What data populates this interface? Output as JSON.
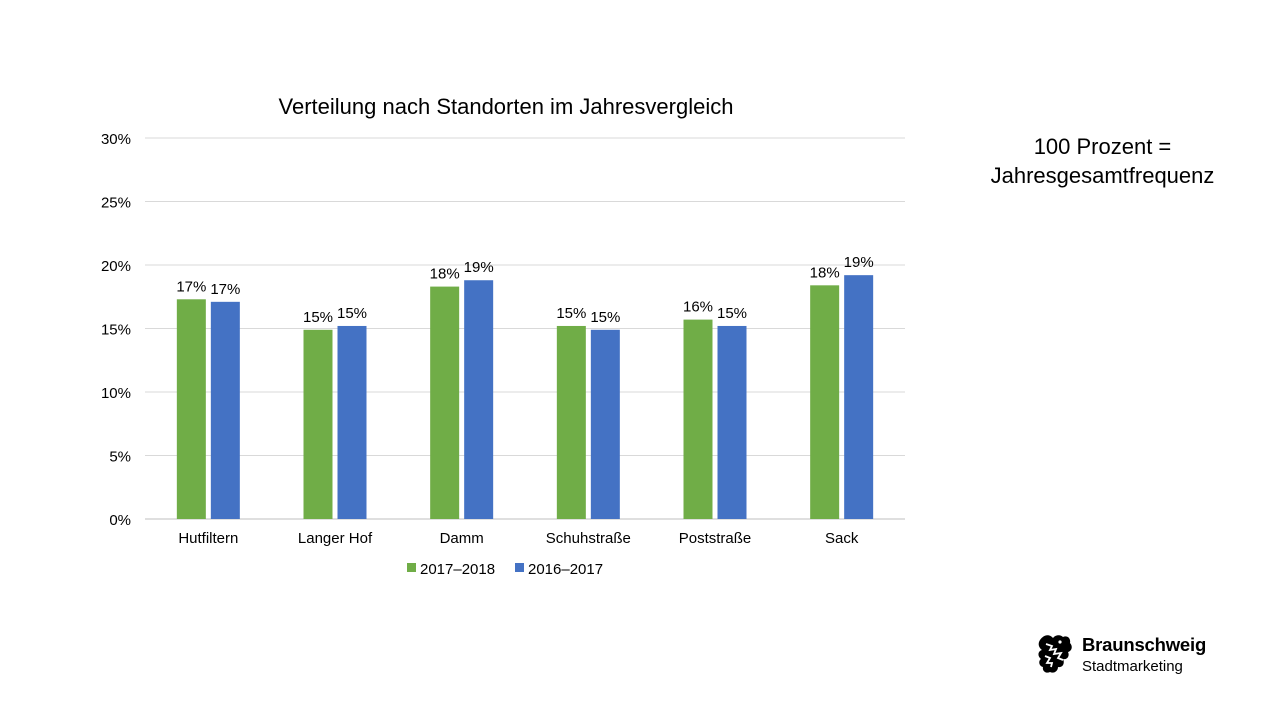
{
  "chart_data": {
    "type": "bar",
    "title": "Verteilung nach Standorten im Jahresvergleich",
    "xlabel": "",
    "ylabel": "",
    "categories": [
      "Hutfiltern",
      "Langer Hof",
      "Damm",
      "Schuhstraße",
      "Poststraße",
      "Sack"
    ],
    "series": [
      {
        "name": "2017–2018",
        "color": "#70ad47",
        "values": [
          17.3,
          14.9,
          18.3,
          15.2,
          15.7,
          18.4
        ],
        "labels": [
          "17%",
          "15%",
          "18%",
          "15%",
          "16%",
          "18%"
        ]
      },
      {
        "name": "2016–2017",
        "color": "#4472c4",
        "values": [
          17.1,
          15.2,
          18.8,
          14.9,
          15.2,
          19.2
        ],
        "labels": [
          "17%",
          "15%",
          "19%",
          "15%",
          "15%",
          "19%"
        ]
      }
    ],
    "ylim": [
      0,
      30
    ],
    "yticks": [
      0,
      5,
      10,
      15,
      20,
      25,
      30
    ],
    "ytick_labels": [
      "0%",
      "5%",
      "10%",
      "15%",
      "20%",
      "25%",
      "30%"
    ],
    "grid": true,
    "legend": "bottom-center"
  },
  "note": {
    "line1": "100 Prozent =",
    "line2": "Jahresgesamtfrequenz"
  },
  "logo": {
    "title": "Braunschweig",
    "subtitle": "Stadtmarketing",
    "icon": "lion-icon"
  }
}
